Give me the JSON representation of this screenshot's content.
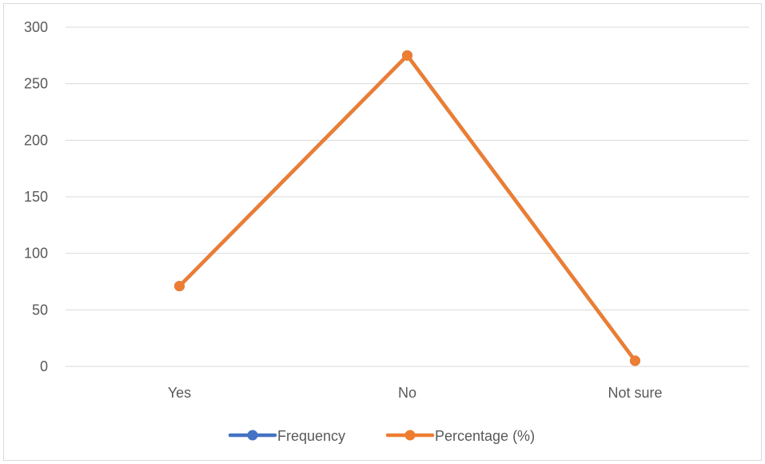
{
  "chart_data": {
    "type": "line",
    "categories": [
      "Yes",
      "No",
      "Not sure"
    ],
    "series": [
      {
        "name": "Frequency",
        "values": [
          71,
          275,
          5
        ],
        "color": "#4472c4"
      },
      {
        "name": "Percentage (%)",
        "values": [
          71,
          275,
          5
        ],
        "color": "#ed7d31"
      }
    ],
    "ylim": [
      0,
      300
    ],
    "yticks": [
      0,
      50,
      100,
      150,
      200,
      250,
      300
    ],
    "grid": true,
    "legend": "bottom"
  }
}
